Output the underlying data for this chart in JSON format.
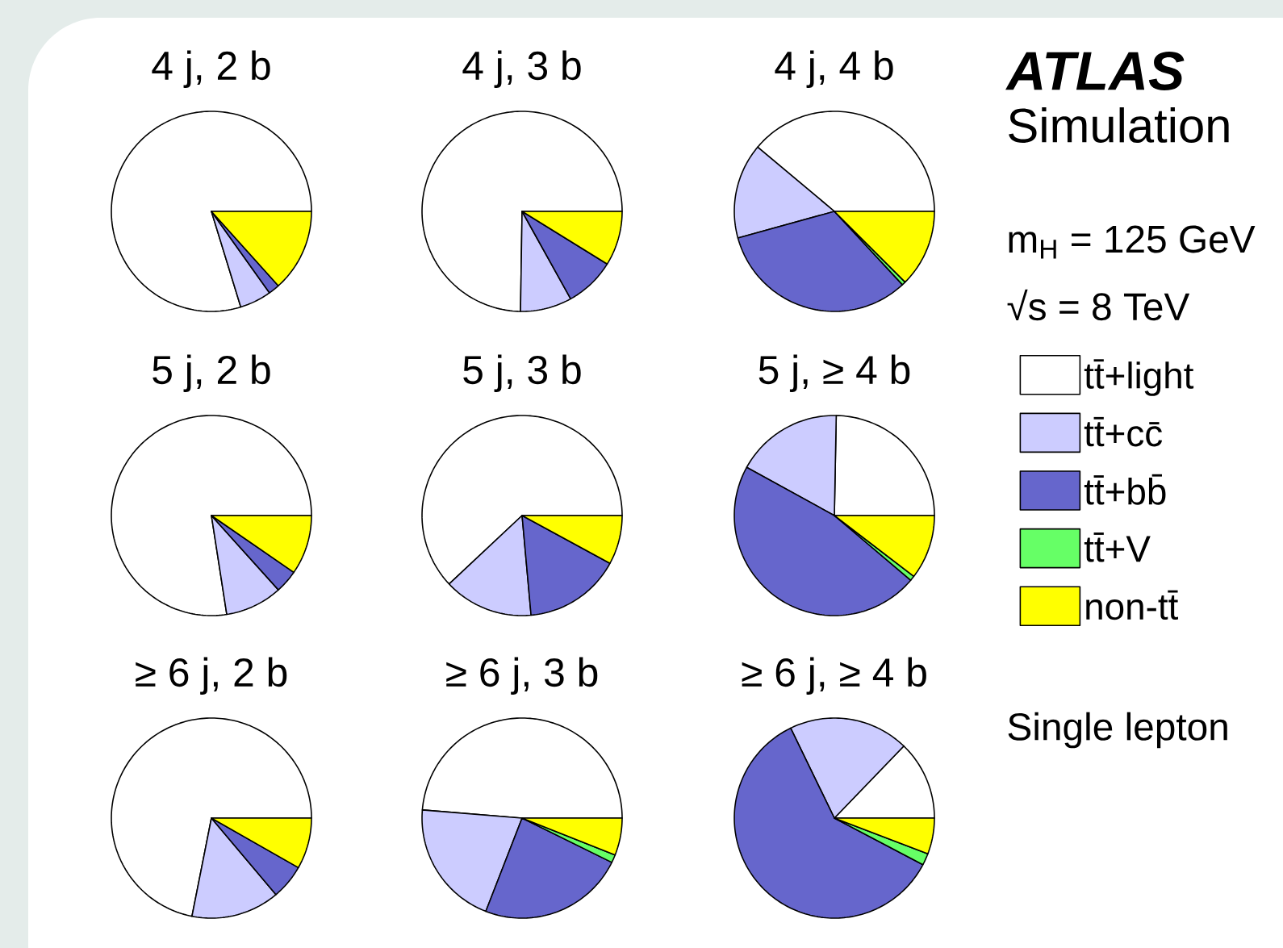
{
  "chart_data": [
    {
      "type": "pie",
      "title": "4 j, 2 b",
      "categories": [
        null,
        null,
        null,
        null,
        null
      ],
      "values": [
        79.5,
        5.1,
        1.8,
        null,
        13.3
      ],
      "colors": [
        "#ffffff",
        "#ccccff",
        "#6666cc",
        "#66ff66",
        "#ffff00"
      ]
    },
    {
      "type": "pie",
      "title": "4 j, 3 b",
      "categories": [
        null,
        null,
        null,
        null,
        null
      ],
      "values": [
        74.6,
        8.3,
        8.1,
        null,
        8.8
      ],
      "colors": [
        "#ffffff",
        "#ccccff",
        "#6666cc",
        "#66ff66",
        "#ffff00"
      ]
    },
    {
      "type": "pie",
      "title": "4 j, 4 b",
      "categories": [
        null,
        null,
        null,
        null,
        null
      ],
      "values": [
        38.9,
        15.4,
        32.6,
        0.6,
        12.5
      ],
      "colors": [
        "#ffffff",
        "#ccccff",
        "#6666cc",
        "#66ff66",
        "#ffff00"
      ],
      "annotations": [
        "ATLAS",
        "Simulation",
        "m$_{H}$ = 125 GeV",
        "√s = 8 TeV"
      ]
    },
    {
      "type": "pie",
      "title": "5 j, 2 b",
      "categories": [
        null,
        null,
        null,
        null,
        null
      ],
      "values": [
        77.3,
        9.2,
        3.7,
        null,
        9.6
      ],
      "colors": [
        "#ffffff",
        "#ccccff",
        "#6666cc",
        "#66ff66",
        "#ffff00"
      ]
    },
    {
      "type": "pie",
      "title": "5 j, 3 b",
      "categories": [
        null,
        null,
        null,
        null,
        null
      ],
      "values": [
        61.8,
        14.4,
        15.6,
        null,
        7.9
      ],
      "colors": [
        "#ffffff",
        "#ccccff",
        "#6666cc",
        "#66ff66",
        "#ffff00"
      ]
    },
    {
      "type": "pie",
      "title": "5 j, ≥ 4 b",
      "categories": [
        "tt̄+light",
        "tt̄+cc̄",
        "tt̄+bb̄",
        "tt̄+V",
        "non-tt̄"
      ],
      "values": [
        24.7,
        17.3,
        46.8,
        0.8,
        10.4
      ],
      "colors": [
        "#ffffff",
        "#ccccff",
        "#6666cc",
        "#66ff66",
        "#ffff00"
      ],
      "legend": "right"
    },
    {
      "type": "pie",
      "title": "≥ 6 j, 2 b",
      "categories": [
        null,
        null,
        null,
        null,
        null
      ],
      "values": [
        71.6,
        14.2,
        5.6,
        null,
        8.2
      ],
      "colors": [
        "#ffffff",
        "#ccccff",
        "#6666cc",
        "#66ff66",
        "#ffff00"
      ]
    },
    {
      "type": "pie",
      "title": "≥ 6 j, 3 b",
      "categories": [
        null,
        null,
        null,
        null,
        null
      ],
      "values": [
        48.7,
        20.4,
        23.6,
        1.3,
        6.0
      ],
      "colors": [
        "#ffffff",
        "#ccccff",
        "#6666cc",
        "#66ff66",
        "#ffff00"
      ]
    },
    {
      "type": "pie",
      "title": "≥ 6 j, ≥ 4 b",
      "categories": [
        null,
        null,
        null,
        null,
        null
      ],
      "values": [
        12.8,
        19.4,
        60.1,
        1.9,
        5.8
      ],
      "colors": [
        "#ffffff",
        "#ccccff",
        "#6666cc",
        "#66ff66",
        "#ffff00"
      ],
      "annotations": [
        "Single lepton"
      ]
    }
  ]
}
